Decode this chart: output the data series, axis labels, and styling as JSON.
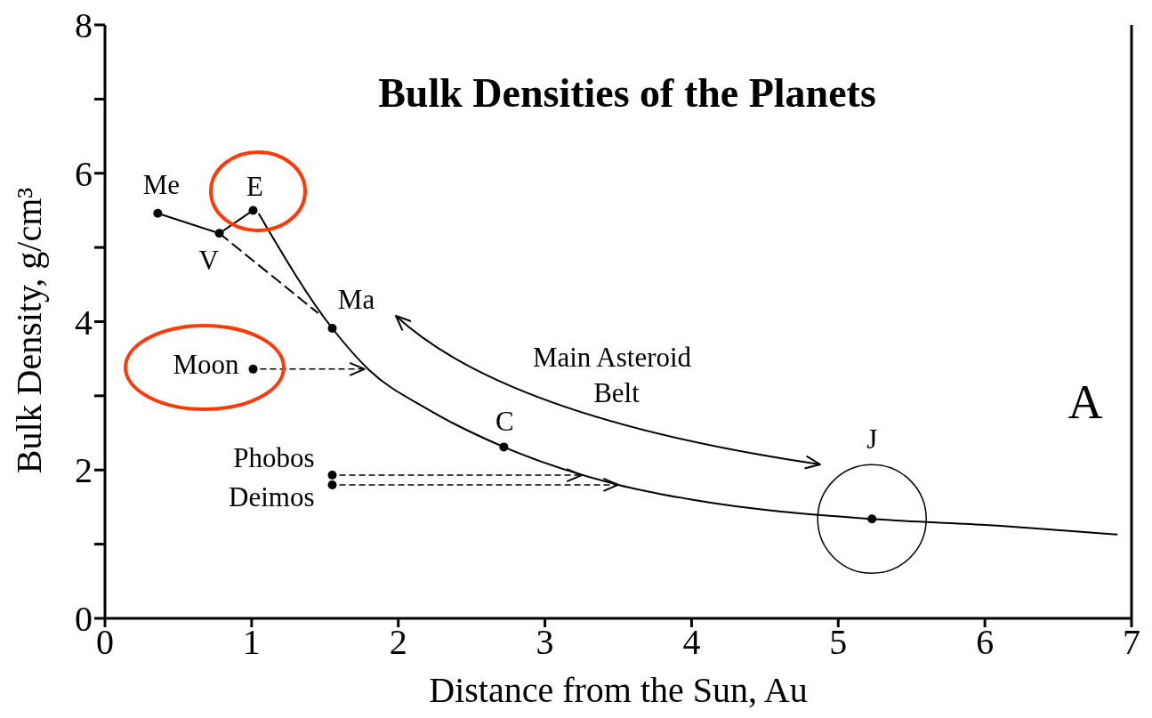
{
  "chart_data": {
    "type": "scatter",
    "title": "Bulk Densities of the Planets",
    "xlabel": "Distance from the Sun, Au",
    "ylabel": "Bulk Density, g/cm³",
    "xlim": [
      0,
      7
    ],
    "xticks": [
      0,
      1,
      2,
      3,
      4,
      5,
      6,
      7
    ],
    "ylim": [
      0,
      8
    ],
    "yticks": [
      0,
      {
        "value": 1,
        "label": null
      },
      2,
      {
        "value": 3,
        "label": null
      },
      4,
      {
        "value": 5,
        "label": null
      },
      6,
      {
        "value": 7,
        "label": null
      },
      8
    ],
    "series": [
      {
        "color": "#000000",
        "marker": "circle",
        "x": [
          0.36,
          0.78,
          1.01,
          1.55,
          1.01,
          1.55,
          1.55,
          2.72,
          5.23
        ],
        "values": [
          5.46,
          5.19,
          5.5,
          3.91,
          3.36,
          1.93,
          1.8,
          2.31,
          1.34
        ]
      },
      {
        "type": "line",
        "color": "#000000",
        "marker": "none",
        "line_style": "solid",
        "x": [
          0.36,
          0.78,
          1.01
        ],
        "values": [
          5.46,
          5.19,
          5.5
        ]
      },
      {
        "type": "line",
        "color": "#000000",
        "marker": "none",
        "line_style": "dashed",
        "x": [
          0.78,
          1.45
        ],
        "values": [
          5.19,
          4.12
        ]
      },
      {
        "type": "line",
        "color": "#000000",
        "marker": "none",
        "line_style": "solid",
        "x": [
          1.05,
          1.55,
          1.8,
          2.2,
          2.72,
          3.5,
          4,
          5.23,
          6,
          6.9
        ],
        "values": [
          5.45,
          3.91,
          3.35,
          2.82,
          2.31,
          1.8,
          1.6,
          1.34,
          1.26,
          1.13
        ]
      }
    ],
    "annotations": [
      {
        "text": "Me",
        "x": 0.36,
        "y": 5.46
      },
      {
        "text": "V",
        "x": 0.78,
        "y": 5.19
      },
      {
        "text": "E",
        "x": 1.01,
        "y": 5.5
      },
      {
        "text": "Ma",
        "x": 1.55,
        "y": 3.91
      },
      {
        "text": "Moon",
        "x": 1.01,
        "y": 3.36
      },
      {
        "text": "Phobos",
        "x": 1.55,
        "y": 1.93
      },
      {
        "text": "Deimos",
        "x": 1.55,
        "y": 1.8
      },
      {
        "text": "C",
        "x": 2.72,
        "y": 2.31
      },
      {
        "text": "J",
        "x": 5.23,
        "y": 1.34
      },
      "Main Asteroid Belt",
      "A"
    ]
  }
}
